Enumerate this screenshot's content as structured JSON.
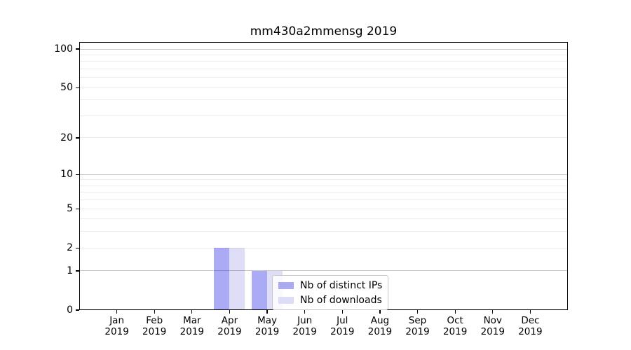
{
  "chart_data": {
    "type": "bar",
    "title": "mm430a2mmensg 2019",
    "categories": [
      "Jan 2019",
      "Feb 2019",
      "Mar 2019",
      "Apr 2019",
      "May 2019",
      "Jun 2019",
      "Jul 2019",
      "Aug 2019",
      "Sep 2019",
      "Oct 2019",
      "Nov 2019",
      "Dec 2019"
    ],
    "months": [
      "Jan",
      "Feb",
      "Mar",
      "Apr",
      "May",
      "Jun",
      "Jul",
      "Aug",
      "Sep",
      "Oct",
      "Nov",
      "Dec"
    ],
    "year_label": "2019",
    "series": [
      {
        "name": "Nb of distinct IPs",
        "color": "rgba(0,0,225,0.33)",
        "solid_color": "#aaaaf2",
        "values": [
          0,
          0,
          0,
          2,
          1,
          0,
          0,
          0,
          0,
          0,
          0,
          0
        ]
      },
      {
        "name": "Nb of downloads",
        "color": "rgba(0,0,195,0.13)",
        "solid_color": "#ddddf8",
        "values": [
          0,
          0,
          0,
          2,
          1,
          0,
          0,
          0,
          0,
          0,
          0,
          0
        ]
      }
    ],
    "xlabel": "",
    "ylabel": "",
    "yscale": "log1p",
    "ylim": [
      0,
      113
    ],
    "ytick_labels": [
      "0",
      "1",
      "2",
      "5",
      "10",
      "20",
      "50",
      "100"
    ],
    "ytick_values": [
      0,
      1,
      2,
      5,
      10,
      20,
      50,
      100
    ],
    "major_grid_values": [
      1,
      10,
      100
    ],
    "minor_grid_values": [
      2,
      3,
      4,
      5,
      6,
      7,
      8,
      9,
      20,
      30,
      40,
      50,
      60,
      70,
      80,
      90
    ],
    "grid": "on",
    "legend_position": "lower center",
    "colors": {
      "major_grid": "#c8c8c8",
      "minor_grid": "#ececec",
      "spine": "#000000",
      "background": "#ffffff"
    }
  }
}
